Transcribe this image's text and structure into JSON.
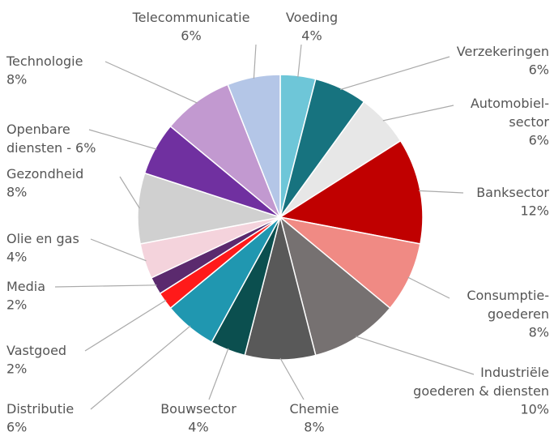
{
  "chart_data": {
    "type": "pie",
    "categories": [
      [
        "Voeding"
      ],
      [
        "Verzekeringen"
      ],
      [
        "Automobiel-",
        "sector"
      ],
      [
        "Banksector"
      ],
      [
        "Consumptie-",
        "goederen"
      ],
      [
        "Industriële",
        "goederen & diensten"
      ],
      [
        "Chemie"
      ],
      [
        "Bouwsector"
      ],
      [
        "Distributie"
      ],
      [
        "Vastgoed"
      ],
      [
        "Media"
      ],
      [
        "Olie en gas"
      ],
      [
        "Gezondheid"
      ],
      [
        "Openbare",
        "diensten -"
      ],
      [
        "Technologie"
      ],
      [
        "Telecommunicatie"
      ]
    ],
    "values": [
      4,
      6,
      6,
      12,
      8,
      10,
      8,
      4,
      6,
      2,
      2,
      4,
      8,
      6,
      8,
      6
    ],
    "value_labels": [
      "4%",
      "6%",
      "6%",
      "12%",
      "8%",
      "10%",
      "8%",
      "4%",
      "6%",
      "2%",
      "2%",
      "4%",
      "8%",
      "6%",
      "8%",
      "6%"
    ],
    "colors": [
      "#6ec6d8",
      "#17737f",
      "#e7e7e7",
      "#c00000",
      "#f08a84",
      "#767171",
      "#595959",
      "#0b4f4f",
      "#2097b0",
      "#ff1a1a",
      "#5b2a6e",
      "#f4d3dc",
      "#d0d0d0",
      "#7030a0",
      "#c299d0",
      "#b4c6e7"
    ]
  }
}
